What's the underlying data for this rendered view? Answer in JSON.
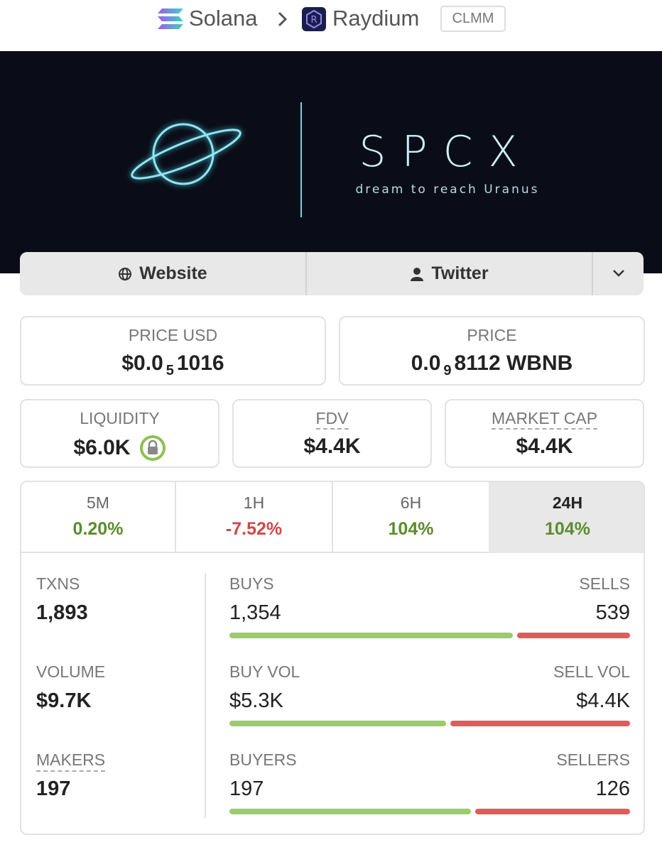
{
  "breadcrumb": {
    "chain": "Solana",
    "dex": "Raydium",
    "badge": "CLMM"
  },
  "banner": {
    "title": "SPCX",
    "tagline": "dream to reach Uranus"
  },
  "links": [
    "Website",
    "Twitter"
  ],
  "price_usd": {
    "label": "PRICE USD",
    "prefix": "$0.0",
    "zeros": "5",
    "digits": "1016"
  },
  "price": {
    "label": "PRICE",
    "prefix": "0.0",
    "zeros": "9",
    "digits": "8112 WBNB"
  },
  "stats": [
    {
      "label": "LIQUIDITY",
      "value": "$6.0K"
    },
    {
      "label": "FDV",
      "value": "$4.4K"
    },
    {
      "label": "MARKET CAP",
      "value": "$4.4K"
    }
  ],
  "tabs": [
    {
      "label": "5M",
      "change": "0.20%"
    },
    {
      "label": "1H",
      "change": "-7.52%"
    },
    {
      "label": "6H",
      "change": "104%"
    },
    {
      "label": "24H",
      "change": "104%"
    }
  ],
  "breakdown": [
    {
      "total_label": "TXNS",
      "total": "1,893",
      "left_name": "BUYS",
      "left": {
        "value": 1354,
        "label": "1,354"
      },
      "right_name": "SELLS",
      "right": {
        "value": 539,
        "label": "539"
      }
    },
    {
      "total_label": "VOLUME",
      "total": "$9.7K",
      "left_name": "BUY VOL",
      "left": {
        "value": 5300,
        "label": "$5.3K"
      },
      "right_name": "SELL VOL",
      "right": {
        "value": 4400,
        "label": "$4.4K"
      }
    },
    {
      "total_label": "MAKERS",
      "total": "197",
      "left_name": "BUYERS",
      "left": {
        "value": 197,
        "label": "197"
      },
      "right_name": "SELLERS",
      "right": {
        "value": 126,
        "label": "126"
      }
    }
  ]
}
